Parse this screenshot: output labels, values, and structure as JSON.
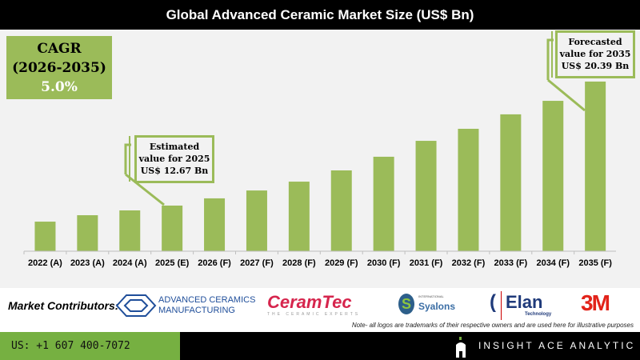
{
  "header": {
    "title": "Global Advanced Ceramic Market Size (US$ Bn)"
  },
  "cagr": {
    "label": "CAGR",
    "period": "(2026-2035)",
    "value": "5.0%"
  },
  "callouts": {
    "estimated": {
      "line1": "Estimated",
      "line2": "value for 2025",
      "line3": "US$ 12.67 Bn"
    },
    "forecast": {
      "line1": "Forecasted",
      "line2": "value for 2035",
      "line3": "US$ 20.39 Bn"
    }
  },
  "chart_data": {
    "type": "bar",
    "title": "Global Advanced Ceramic Market Size (US$ Bn)",
    "categories": [
      "2022 (A)",
      "2023 (A)",
      "2024 (A)",
      "2025 (E)",
      "2026 (F)",
      "2027 (F)",
      "2028 (F)",
      "2029 (F)",
      "2030 (F)",
      "2031 (F)",
      "2032 (F)",
      "2033 (F)",
      "2034 (F)",
      "2035 (F)"
    ],
    "values": [
      11.67,
      12.07,
      12.37,
      12.67,
      13.12,
      13.61,
      14.16,
      14.86,
      15.71,
      16.7,
      17.45,
      18.35,
      19.19,
      20.39
    ],
    "ylim": [
      9.83,
      21.5
    ],
    "grid": false,
    "bar_color": "#9bbb59"
  },
  "contributors": {
    "label": "Market Contributors:",
    "logos": [
      "ADVANCED CERAMICS MANUFACTURING",
      "CeramTec",
      "THE CERAMIC EXPERTS",
      "INTERNATIONAL",
      "Syalons",
      "Elan",
      "Technology",
      "3M"
    ],
    "note": "Note- all logos are trademarks of their respective owners and are used here for illustrative purposes"
  },
  "footer": {
    "phone": "US: +1 607 400-7072",
    "brand": "INSIGHT ACE ANALYTIC"
  },
  "colors": {
    "accent": "#9bbb59",
    "footer_green": "#76b041",
    "ceramtec": "#d6254d",
    "threem": "#e2231a",
    "blue": "#1f4e9a"
  }
}
